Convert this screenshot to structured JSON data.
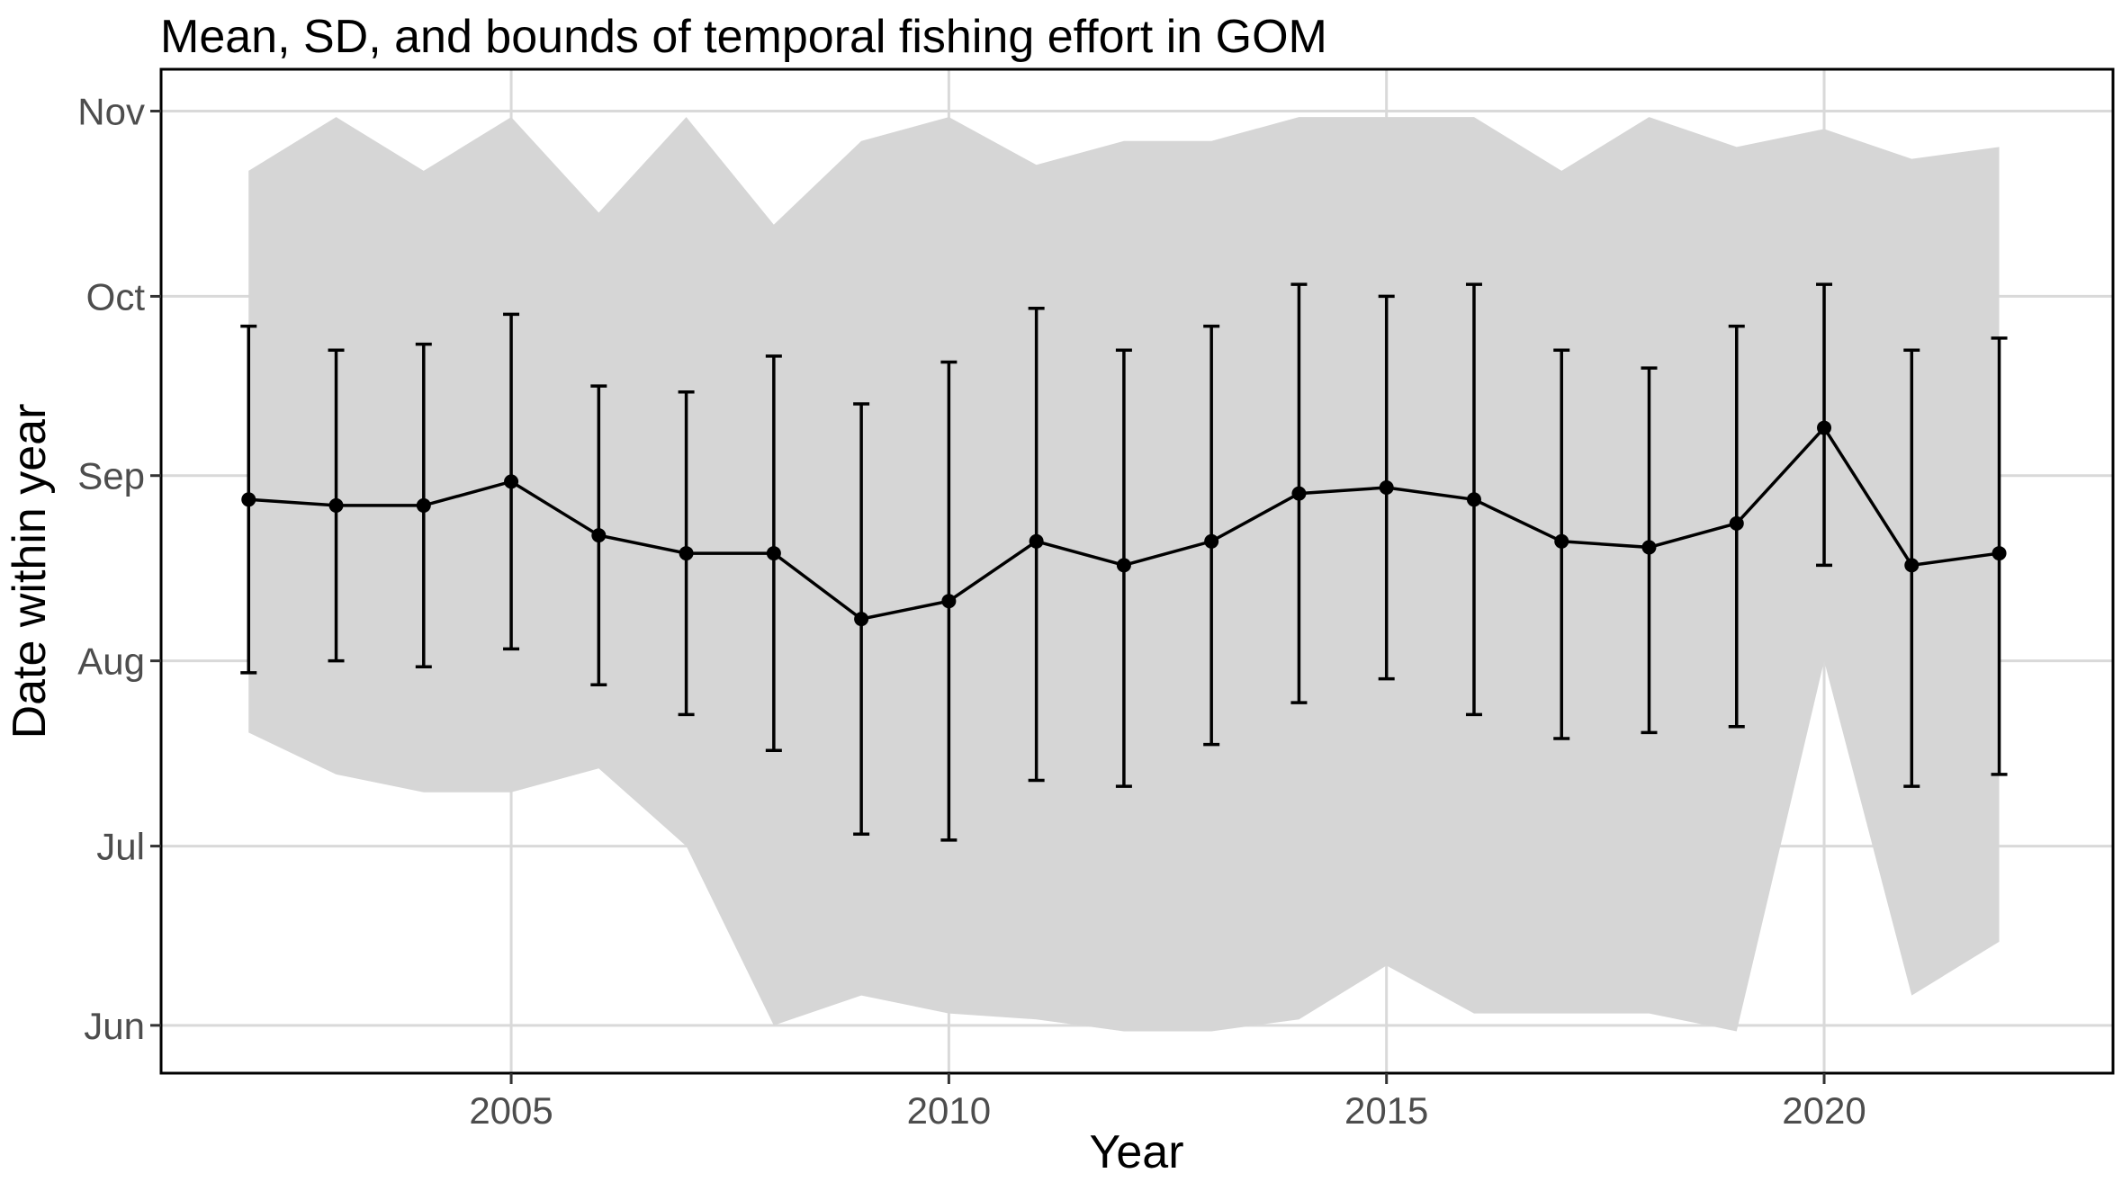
{
  "chart_data": {
    "type": "line",
    "title": "Mean, SD, and bounds of temporal fishing effort in GOM",
    "xlabel": "Year",
    "ylabel": "Date within year",
    "xlim": [
      2001.0,
      2023.3
    ],
    "ylim": [
      "2000-05-24",
      "2000-11-08"
    ],
    "x_ticks": [
      2005,
      2010,
      2015,
      2020
    ],
    "y_ticks": [
      {
        "date": "2000-06-01",
        "label": "Jun"
      },
      {
        "date": "2000-07-01",
        "label": "Jul"
      },
      {
        "date": "2000-08-01",
        "label": "Aug"
      },
      {
        "date": "2000-09-01",
        "label": "Sep"
      },
      {
        "date": "2000-10-01",
        "label": "Oct"
      },
      {
        "date": "2000-11-01",
        "label": "Nov"
      }
    ],
    "grid": true,
    "years": [
      2002,
      2003,
      2004,
      2005,
      2006,
      2007,
      2008,
      2009,
      2010,
      2011,
      2012,
      2013,
      2014,
      2015,
      2016,
      2017,
      2018,
      2019,
      2020,
      2021,
      2022
    ],
    "mean": [
      "2000-08-28",
      "2000-08-27",
      "2000-08-27",
      "2000-08-31",
      "2000-08-22",
      "2000-08-19",
      "2000-08-19",
      "2000-08-08",
      "2000-08-11",
      "2000-08-21",
      "2000-08-17",
      "2000-08-21",
      "2000-08-29",
      "2000-08-30",
      "2000-08-28",
      "2000-08-21",
      "2000-08-20",
      "2000-08-24",
      "2000-09-09",
      "2000-08-17",
      "2000-08-19"
    ],
    "sd_lower": [
      "2000-07-30",
      "2000-08-01",
      "2000-07-31",
      "2000-08-03",
      "2000-07-28",
      "2000-07-23",
      "2000-07-17",
      "2000-07-03",
      "2000-07-02",
      "2000-07-12",
      "2000-07-11",
      "2000-07-18",
      "2000-07-25",
      "2000-07-29",
      "2000-07-23",
      "2000-07-19",
      "2000-07-20",
      "2000-07-21",
      "2000-08-17",
      "2000-07-11",
      "2000-07-13"
    ],
    "sd_upper": [
      "2000-09-26",
      "2000-09-22",
      "2000-09-23",
      "2000-09-28",
      "2000-09-16",
      "2000-09-15",
      "2000-09-21",
      "2000-09-13",
      "2000-09-20",
      "2000-09-29",
      "2000-09-22",
      "2000-09-26",
      "2000-10-03",
      "2000-10-01",
      "2000-10-03",
      "2000-09-22",
      "2000-09-19",
      "2000-09-26",
      "2000-10-03",
      "2000-09-22",
      "2000-09-24"
    ],
    "min": [
      "2000-07-20",
      "2000-07-13",
      "2000-07-10",
      "2000-07-10",
      "2000-07-14",
      "2000-07-01",
      "2000-06-01",
      "2000-06-06",
      "2000-06-03",
      "2000-06-02",
      "2000-05-31",
      "2000-05-31",
      "2000-06-02",
      "2000-06-11",
      "2000-06-03",
      "2000-06-03",
      "2000-06-03",
      "2000-05-31",
      "2000-08-01",
      "2000-06-06",
      "2000-06-15"
    ],
    "max": [
      "2000-10-22",
      "2000-10-31",
      "2000-10-22",
      "2000-10-31",
      "2000-10-15",
      "2000-10-31",
      "2000-10-13",
      "2000-10-27",
      "2000-10-31",
      "2000-10-23",
      "2000-10-27",
      "2000-10-27",
      "2000-10-31",
      "2000-10-31",
      "2000-10-31",
      "2000-10-22",
      "2000-10-31",
      "2000-10-26",
      "2000-10-29",
      "2000-10-24",
      "2000-10-26"
    ]
  }
}
